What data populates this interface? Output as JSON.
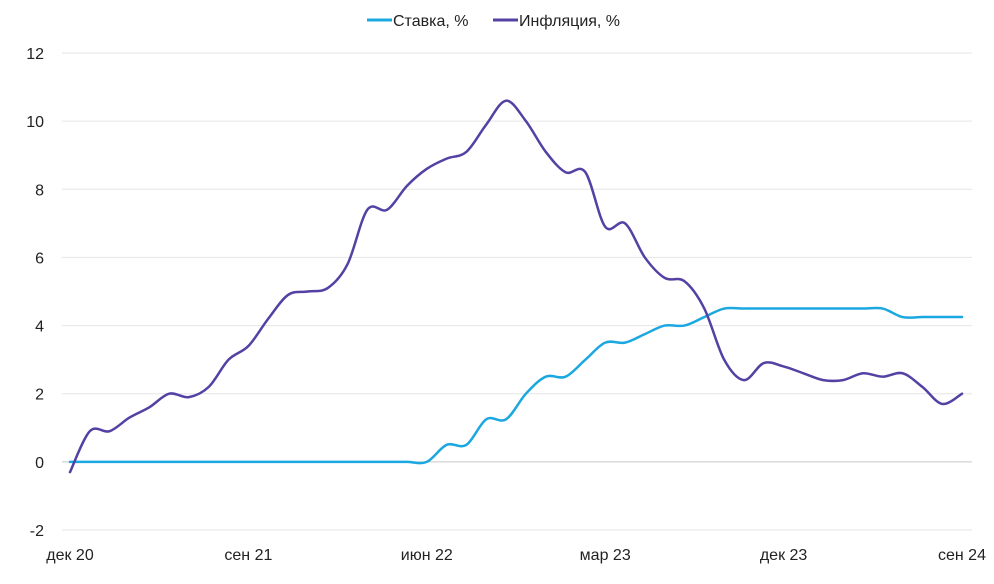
{
  "chart_data": {
    "type": "line",
    "title": "",
    "xlabel": "",
    "ylabel": "",
    "ylim": [
      -2,
      12
    ],
    "yticks": [
      12,
      10,
      8,
      6,
      4,
      2,
      0,
      -2
    ],
    "x_tick_labels": [
      "дек 20",
      "сен 21",
      "июн 22",
      "мар 23",
      "дек 23",
      "сен 24"
    ],
    "grid": "horizontal",
    "legend_position": "top-center",
    "x": [
      "дек 20",
      "янв 21",
      "фев 21",
      "мар 21",
      "апр 21",
      "май 21",
      "июн 21",
      "июл 21",
      "авг 21",
      "сен 21",
      "окт 21",
      "ноя 21",
      "дек 21",
      "янв 22",
      "фев 22",
      "мар 22",
      "апр 22",
      "май 22",
      "июн 22",
      "июл 22",
      "авг 22",
      "сен 22",
      "окт 22",
      "ноя 22",
      "дек 22",
      "янв 23",
      "фев 23",
      "мар 23",
      "апр 23",
      "май 23",
      "июн 23",
      "июл 23",
      "авг 23",
      "сен 23",
      "окт 23",
      "ноя 23",
      "дек 23",
      "янв 24",
      "фев 24",
      "мар 24",
      "апр 24",
      "май 24",
      "июн 24",
      "июл 24",
      "авг 24",
      "сен 24"
    ],
    "series": [
      {
        "name": "Ставка, %",
        "color": "#1ba8e0",
        "values": [
          0,
          0,
          0,
          0,
          0,
          0,
          0,
          0,
          0,
          0,
          0,
          0,
          0,
          0,
          0,
          0,
          0,
          0,
          0,
          0.5,
          0.5,
          1.25,
          1.25,
          2.0,
          2.5,
          2.5,
          3.0,
          3.5,
          3.5,
          3.75,
          4.0,
          4.0,
          4.25,
          4.5,
          4.5,
          4.5,
          4.5,
          4.5,
          4.5,
          4.5,
          4.5,
          4.5,
          4.25,
          4.25,
          4.25,
          4.25
        ]
      },
      {
        "name": "Инфляция, %",
        "color": "#5441a3",
        "values": [
          -0.3,
          0.9,
          0.9,
          1.3,
          1.6,
          2.0,
          1.9,
          2.2,
          3.0,
          3.4,
          4.2,
          4.9,
          5.0,
          5.1,
          5.8,
          7.4,
          7.4,
          8.1,
          8.6,
          8.9,
          9.1,
          9.9,
          10.6,
          10.0,
          9.1,
          8.5,
          8.5,
          6.9,
          7.0,
          6.0,
          5.4,
          5.3,
          4.5,
          3.0,
          2.4,
          2.9,
          2.8,
          2.6,
          2.4,
          2.4,
          2.6,
          2.5,
          2.6,
          2.2,
          1.7,
          2.0
        ]
      }
    ]
  }
}
